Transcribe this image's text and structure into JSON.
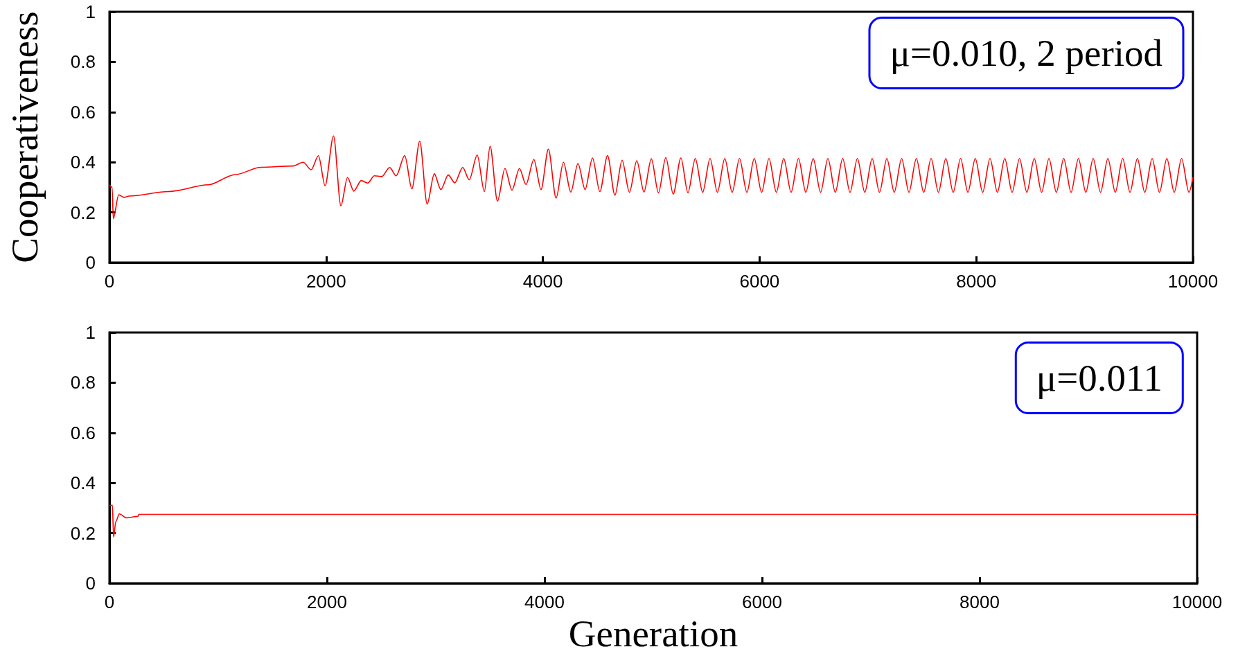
{
  "chart_data": [
    {
      "type": "line",
      "ylabel": "Cooperativeness",
      "annotations": [
        "μ=0.010, 2 period"
      ],
      "xlim": [
        0,
        10000
      ],
      "xticks": [
        0,
        2000,
        4000,
        6000,
        8000,
        10000
      ],
      "ylim": [
        0,
        1
      ],
      "yticks": [
        0,
        0.2,
        0.4,
        0.6,
        0.8,
        1
      ],
      "grid": false,
      "marker": "none",
      "line_style": "solid",
      "series": [
        {
          "color": "#ff0000",
          "x": [
            0,
            24,
            36,
            85,
            134,
            182,
            547,
            912,
            1156,
            1399,
            1691,
            1788,
            1861,
            1929,
            1990,
            2068,
            2136,
            2197,
            2255,
            2324,
            2384,
            2445,
            2513,
            2586,
            2647,
            2725,
            2791,
            2864,
            2932,
            2998,
            3058,
            3127,
            3187,
            3260,
            3321,
            3394,
            3460,
            3513,
            3581,
            3650,
            3715,
            3784,
            3844,
            3917,
            3983,
            4051,
            4122,
            4190,
            4258,
            4324,
            4390,
            4458,
            4526,
            4597,
            4665,
            4731,
            4799,
            4867,
            4933,
            5001,
            5067,
            5135,
            5203,
            5274,
            5339,
            5407,
            5475,
            5543,
            5611,
            5679,
            5747,
            5815,
            5883,
            5951,
            6019,
            6087,
            6155,
            6223,
            6291,
            6359,
            6427,
            6495,
            6563,
            6631,
            6699,
            6767,
            6835,
            6903,
            6971,
            7039,
            7107,
            7175,
            7243,
            7311,
            7379,
            7447,
            7515,
            7583,
            7651,
            7719,
            7787,
            7855,
            7923,
            7991,
            8059,
            8127,
            8195,
            8263,
            8331,
            8399,
            8467,
            8535,
            8603,
            8671,
            8739,
            8807,
            8875,
            8943,
            9011,
            9079,
            9147,
            9215,
            9283,
            9351,
            9419,
            9487,
            9555,
            9623,
            9691,
            9759,
            9827,
            9895,
            9963,
            10000
          ],
          "values": [
            0.31,
            0.3,
            0.175,
            0.27,
            0.26,
            0.265,
            0.283,
            0.31,
            0.35,
            0.38,
            0.385,
            0.4,
            0.37,
            0.426,
            0.306,
            0.505,
            0.226,
            0.339,
            0.285,
            0.327,
            0.317,
            0.346,
            0.343,
            0.379,
            0.346,
            0.427,
            0.294,
            0.484,
            0.233,
            0.354,
            0.291,
            0.349,
            0.318,
            0.379,
            0.33,
            0.429,
            0.283,
            0.464,
            0.245,
            0.375,
            0.289,
            0.375,
            0.311,
            0.411,
            0.291,
            0.452,
            0.257,
            0.4,
            0.281,
            0.395,
            0.291,
            0.417,
            0.283,
            0.427,
            0.268,
            0.408,
            0.28,
            0.406,
            0.281,
            0.414,
            0.278,
            0.419,
            0.273,
            0.417,
            0.278,
            0.415,
            0.28,
            0.415,
            0.28,
            0.415,
            0.28,
            0.415,
            0.28,
            0.415,
            0.28,
            0.415,
            0.28,
            0.415,
            0.28,
            0.415,
            0.28,
            0.415,
            0.28,
            0.415,
            0.28,
            0.415,
            0.28,
            0.415,
            0.28,
            0.415,
            0.28,
            0.415,
            0.28,
            0.415,
            0.28,
            0.415,
            0.28,
            0.415,
            0.28,
            0.415,
            0.28,
            0.415,
            0.28,
            0.415,
            0.28,
            0.415,
            0.28,
            0.415,
            0.28,
            0.415,
            0.28,
            0.415,
            0.28,
            0.415,
            0.28,
            0.415,
            0.28,
            0.415,
            0.28,
            0.415,
            0.28,
            0.415,
            0.28,
            0.415,
            0.28,
            0.415,
            0.28,
            0.415,
            0.28,
            0.415,
            0.28,
            0.415,
            0.28,
            0.34
          ]
        }
      ]
    },
    {
      "type": "line",
      "xlabel": "Generation",
      "annotations": [
        "μ=0.011"
      ],
      "xlim": [
        0,
        10000
      ],
      "xticks": [
        0,
        2000,
        4000,
        6000,
        8000,
        10000
      ],
      "ylim": [
        0,
        1
      ],
      "yticks": [
        0,
        0.2,
        0.4,
        0.6,
        0.8,
        1
      ],
      "grid": false,
      "marker": "none",
      "line_style": "solid",
      "series": [
        {
          "color": "#ff0000",
          "x": [
            0,
            27,
            38,
            59,
            91,
            154,
            262,
            270,
            10000
          ],
          "values": [
            0.31,
            0.311,
            0.184,
            0.247,
            0.277,
            0.261,
            0.267,
            0.275,
            0.275
          ]
        }
      ]
    }
  ]
}
